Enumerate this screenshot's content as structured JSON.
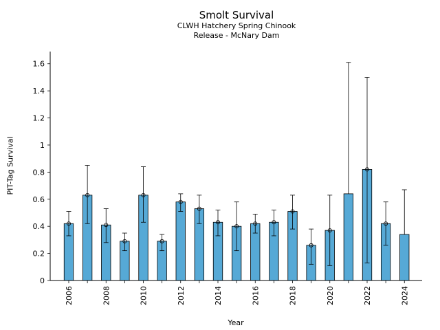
{
  "chart_data": {
    "type": "bar",
    "title": "Smolt Survival",
    "subtitle_lines": [
      "CLWH Hatchery Spring Chinook",
      "Release - McNary Dam"
    ],
    "xlabel": "Year",
    "ylabel": "PIT-Tag Survival",
    "ylim": [
      0,
      1.69
    ],
    "yticks": [
      "0",
      "0.2",
      "0.4",
      "0.6",
      "0.8",
      "1",
      "1.2",
      "1.4",
      "1.6"
    ],
    "xticks": [
      "2006",
      "2008",
      "2010",
      "2012",
      "2014",
      "2016",
      "2018",
      "2020",
      "2022",
      "2024"
    ],
    "bar_color": "#56a9d6",
    "categories": [
      "2006",
      "2007",
      "2008",
      "2009",
      "2010",
      "2011",
      "2012",
      "2013",
      "2014",
      "2015",
      "2016",
      "2017",
      "2018",
      "2019",
      "2020",
      "2021",
      "2022",
      "2023",
      "2024"
    ],
    "values": [
      0.42,
      0.63,
      0.41,
      0.29,
      0.63,
      0.29,
      0.58,
      0.53,
      0.43,
      0.4,
      0.42,
      0.43,
      0.51,
      0.26,
      0.37,
      0.64,
      0.82,
      0.42,
      0.34
    ],
    "error_low": [
      0.33,
      0.42,
      0.28,
      0.22,
      0.43,
      0.22,
      0.51,
      0.42,
      0.33,
      0.22,
      0.35,
      0.33,
      0.38,
      0.12,
      0.11,
      null,
      0.13,
      0.26,
      null
    ],
    "error_high": [
      0.51,
      0.85,
      0.53,
      0.35,
      0.84,
      0.34,
      0.64,
      0.63,
      0.52,
      0.58,
      0.49,
      0.52,
      0.63,
      0.38,
      0.63,
      1.61,
      1.5,
      0.58,
      0.67
    ],
    "markers": [
      true,
      true,
      true,
      true,
      true,
      true,
      true,
      true,
      true,
      true,
      true,
      true,
      true,
      true,
      true,
      false,
      true,
      true,
      false
    ],
    "grid": false
  }
}
